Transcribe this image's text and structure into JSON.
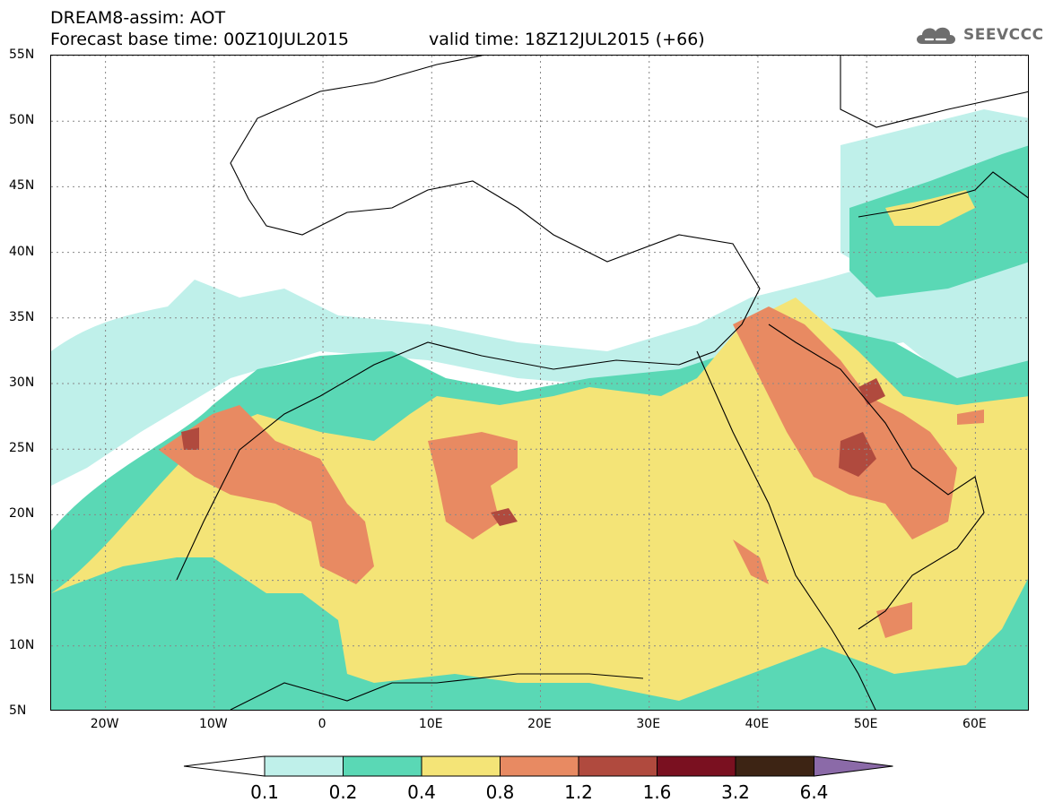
{
  "title": {
    "line1": "DREAM8-assim: AOT",
    "line2": "Forecast base time: 00Z10JUL2015",
    "valid": "valid time: 18Z12JUL2015 (+66)"
  },
  "logo": {
    "text": "SEEVCCC",
    "icon": "cloud-icon"
  },
  "axes": {
    "lat_labels": [
      "55N",
      "50N",
      "45N",
      "40N",
      "35N",
      "30N",
      "25N",
      "20N",
      "15N",
      "10N",
      "5N"
    ],
    "lon_labels": [
      "20W",
      "10W",
      "0",
      "10E",
      "20E",
      "30E",
      "40E",
      "50E",
      "60E"
    ],
    "lat_range": [
      5,
      55
    ],
    "lon_range": [
      -25,
      65
    ]
  },
  "legend": {
    "labels": [
      "0.1",
      "0.2",
      "0.4",
      "0.8",
      "1.2",
      "1.6",
      "3.2",
      "6.4"
    ],
    "colors": [
      "#ffffff",
      "#bff0ea",
      "#5ad8b5",
      "#f4e477",
      "#e88a62",
      "#b04a3e",
      "#7a1020",
      "#3d2414",
      "#8b6aa8"
    ]
  },
  "colors": {
    "class_0_1": "#bff0ea",
    "class_0_2": "#5ad8b5",
    "class_0_4": "#f4e477",
    "class_0_8": "#e88a62",
    "class_1_2": "#b04a3e",
    "class_1_6": "#7a1020",
    "class_3_2": "#3d2414",
    "class_6_4": "#8b6aa8"
  }
}
